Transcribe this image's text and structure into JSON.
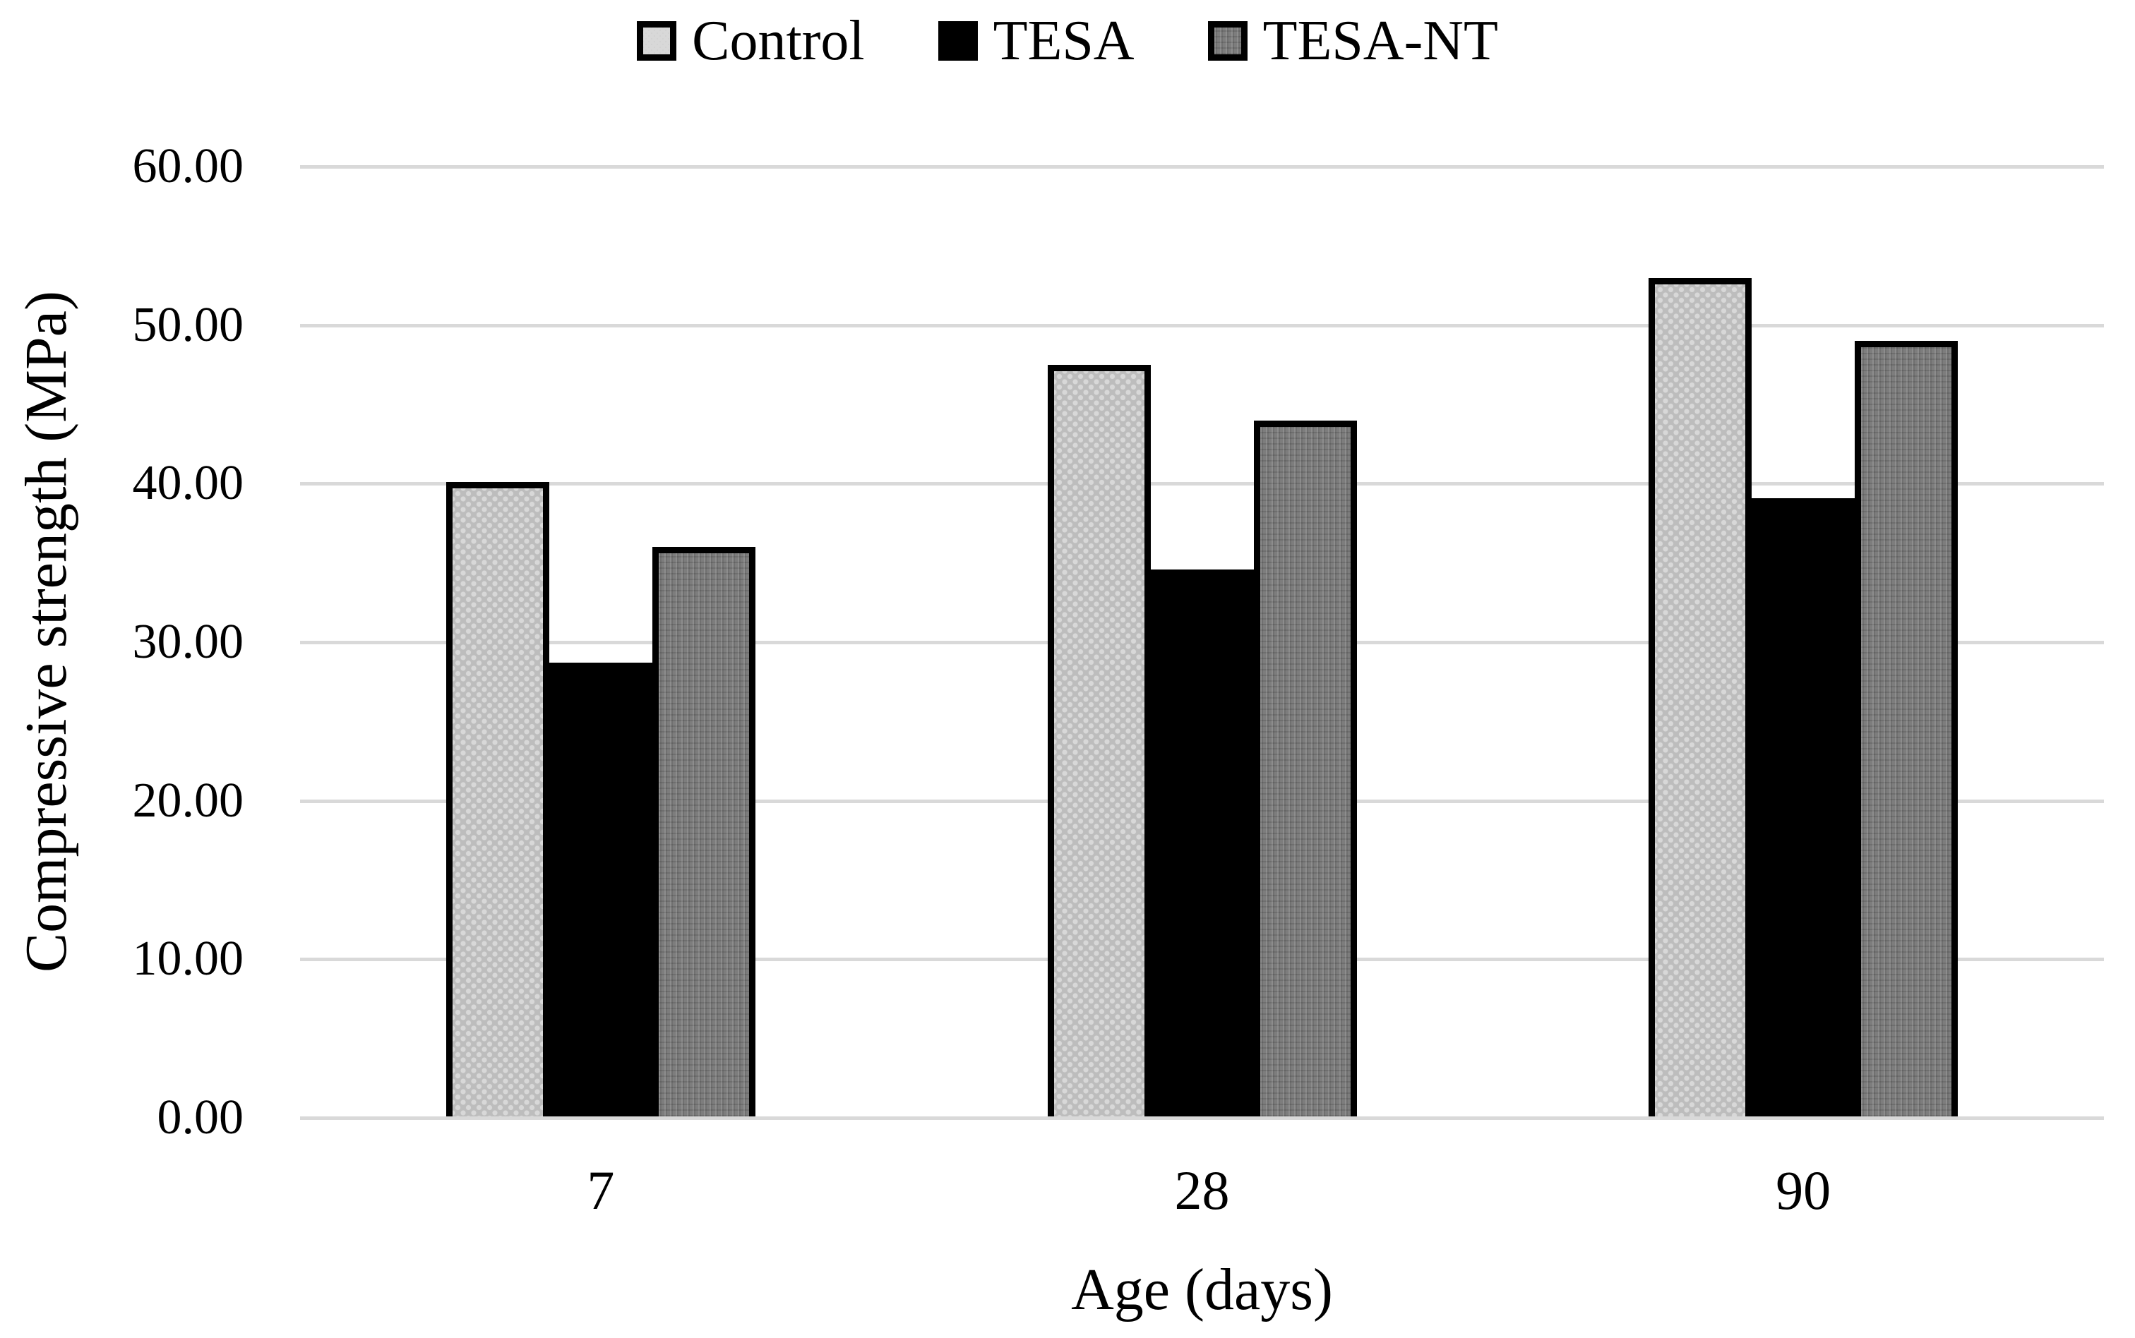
{
  "figure": {
    "background": "#ffffff",
    "text_color": "#000000",
    "gridline_color": "#d9d9d9",
    "bar_border_color": "#000000"
  },
  "chart_data": {
    "type": "bar",
    "title": "",
    "xlabel": "Age (days)",
    "ylabel": "Compressive strength (MPa)",
    "categories": [
      "7",
      "28",
      "90"
    ],
    "series": [
      {
        "name": "Control",
        "values": [
          40.0,
          47.4,
          52.9
        ],
        "fill_color": "#bdbdbd",
        "pattern": "light-gray-dots",
        "border_color": "#000000"
      },
      {
        "name": "TESA",
        "values": [
          28.6,
          34.5,
          39.0
        ],
        "fill_color": "#000000",
        "pattern": "solid-black",
        "border_color": "#000000"
      },
      {
        "name": "TESA-NT",
        "values": [
          35.9,
          43.9,
          48.9
        ],
        "fill_color": "#7d7d7d",
        "pattern": "dark-gray-weave",
        "border_color": "#000000"
      }
    ],
    "ylim": [
      0,
      60
    ],
    "ytick_values": [
      0,
      10,
      20,
      30,
      40,
      50,
      60
    ],
    "ytick_labels": [
      "0.00",
      "10.00",
      "20.00",
      "30.00",
      "40.00",
      "50.00",
      "60.00"
    ],
    "grid": "horizontal",
    "legend_position": "top-center"
  }
}
